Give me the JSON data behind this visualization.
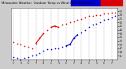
{
  "bg_color": "#cccccc",
  "plot_bg_color": "#ffffff",
  "grid_color": "#888888",
  "temp_color": "#dd0000",
  "windchill_color": "#0000cc",
  "y_min": 18,
  "y_max": 60,
  "y_ticks": [
    21,
    24,
    27,
    30,
    33,
    36,
    39,
    42,
    45,
    48,
    51,
    54,
    57
  ],
  "x_tick_positions": [
    0,
    2,
    4,
    6,
    8,
    10,
    12,
    14,
    16,
    18,
    20,
    22,
    24,
    26
  ],
  "x_tick_labels": [
    "1",
    "3",
    "5",
    "7",
    "9",
    "1",
    "3",
    "5",
    "7",
    "9",
    "1",
    "3",
    "5",
    "7"
  ],
  "temp_x": [
    0,
    1,
    2,
    3,
    4,
    5,
    6,
    7,
    8,
    9,
    10,
    11,
    12,
    13,
    14,
    15,
    16,
    17,
    18,
    19,
    20,
    21,
    22,
    23,
    24,
    25,
    26,
    27
  ],
  "temp_y": [
    32,
    31,
    30,
    29,
    28,
    27,
    31,
    35,
    39,
    42,
    44,
    45,
    44,
    46,
    47,
    48,
    49,
    50,
    51,
    52,
    53,
    53,
    54,
    54,
    55,
    55,
    56,
    56
  ],
  "wind_x": [
    0,
    1,
    2,
    3,
    4,
    5,
    6,
    7,
    8,
    9,
    10,
    11,
    12,
    13,
    14,
    15,
    16,
    17,
    18,
    19,
    20,
    21,
    22,
    23,
    24,
    25,
    26,
    27
  ],
  "wind_y": [
    20,
    19,
    18,
    19,
    20,
    21,
    22,
    23,
    25,
    26,
    26,
    27,
    27,
    28,
    29,
    30,
    35,
    38,
    40,
    42,
    44,
    46,
    47,
    48,
    50,
    51,
    52,
    53
  ],
  "title_text": "Milwaukee Weather  Outdoor Temp",
  "bar_blue_xmin": 0.56,
  "bar_blue_xmax": 0.8,
  "bar_red_xmin": 0.8,
  "bar_red_xmax": 0.97
}
